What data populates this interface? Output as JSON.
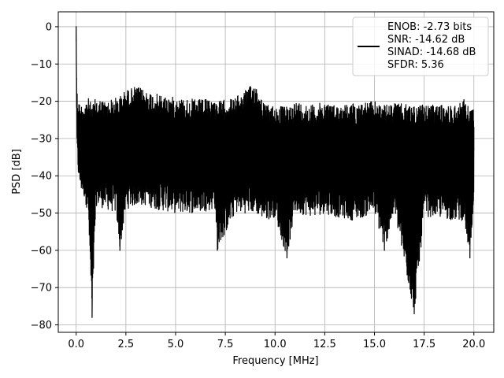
{
  "chart_data": {
    "type": "line",
    "xlabel": "Frequency [MHz]",
    "ylabel": "PSD [dB]",
    "xlim": [
      -0.9,
      21.0
    ],
    "ylim": [
      -82,
      4
    ],
    "xticks": [
      0.0,
      2.5,
      5.0,
      7.5,
      10.0,
      12.5,
      15.0,
      17.5,
      20.0
    ],
    "xtick_labels": [
      "0.0",
      "2.5",
      "5.0",
      "7.5",
      "10.0",
      "12.5",
      "15.0",
      "17.5",
      "20.0"
    ],
    "yticks": [
      0,
      -10,
      -20,
      -30,
      -40,
      -50,
      -60,
      -70,
      -80
    ],
    "ytick_labels": [
      "0",
      "−10",
      "−20",
      "−30",
      "−40",
      "−50",
      "−60",
      "−70",
      "−80"
    ],
    "grid": true,
    "legend_position": "top-right",
    "series": [
      {
        "name": "",
        "color": "#000000",
        "x": [
          0.0,
          0.02,
          0.05,
          0.1,
          0.2,
          0.4,
          0.6,
          0.8,
          1.0,
          1.5,
          2.0,
          2.2,
          2.5,
          3.0,
          3.5,
          4.0,
          5.0,
          6.0,
          7.0,
          7.1,
          8.0,
          9.0,
          9.5,
          10.0,
          10.6,
          11.0,
          12.0,
          12.5,
          13.0,
          14.0,
          15.0,
          15.5,
          16.0,
          17.0,
          17.5,
          18.0,
          19.0,
          19.5,
          19.8,
          20.0
        ],
        "values": [
          0.0,
          -14.0,
          -22.0,
          -28.0,
          -32.0,
          -33.0,
          -34.0,
          -78.0,
          -33.0,
          -32.0,
          -33.0,
          -60.0,
          -31.0,
          -30.0,
          -32.0,
          -31.0,
          -33.0,
          -32.0,
          -34.0,
          -60.0,
          -33.0,
          -30.0,
          -33.0,
          -34.0,
          -62.0,
          -33.0,
          -32.0,
          -31.0,
          -33.0,
          -32.0,
          -33.0,
          -60.0,
          -33.0,
          -77.0,
          -33.0,
          -32.0,
          -33.0,
          -31.0,
          -62.0,
          -33.0
        ],
        "upper_envelope": [
          0.0,
          -12.0,
          -17.0,
          -19.0,
          -21.0,
          -20.0,
          -19.0,
          -21.0,
          -19.0,
          -20.0,
          -19.0,
          -18.5,
          -17.0,
          -16.0,
          -17.0,
          -18.0,
          -19.0,
          -19.5,
          -19.5,
          -20.0,
          -19.0,
          -15.0,
          -21.0,
          -21.0,
          -21.5,
          -20.0,
          -21.0,
          -20.0,
          -21.0,
          -20.5,
          -20.0,
          -21.0,
          -20.5,
          -21.0,
          -21.0,
          -21.0,
          -21.0,
          -19.5,
          -21.5,
          -22.0
        ],
        "lower_envelope": [
          0.0,
          -28.0,
          -38.0,
          -40.0,
          -44.0,
          -46.0,
          -50.0,
          -78.0,
          -48.0,
          -49.0,
          -50.0,
          -60.0,
          -49.0,
          -48.0,
          -48.0,
          -49.0,
          -50.0,
          -50.0,
          -49.0,
          -60.0,
          -50.0,
          -50.0,
          -52.0,
          -51.0,
          -62.0,
          -50.0,
          -51.0,
          -50.0,
          -51.0,
          -52.0,
          -50.0,
          -60.0,
          -50.0,
          -77.0,
          -51.0,
          -51.0,
          -52.0,
          -52.0,
          -62.0,
          -51.0
        ]
      }
    ],
    "legend": {
      "lines": [
        "ENOB: -2.73 bits",
        "SNR: -14.62 dB",
        "SINAD: -14.68 dB",
        "SFDR: 5.36"
      ]
    }
  }
}
